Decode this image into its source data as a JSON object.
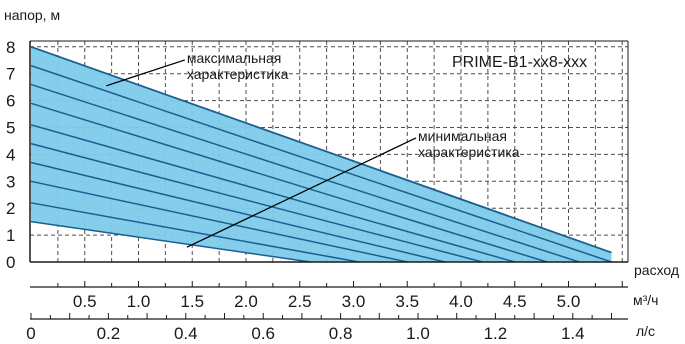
{
  "chart_data": {
    "type": "area",
    "model": "PRIME-B1-xx8-xxx",
    "ylabel": "напор, м",
    "xlabel": "расход",
    "x_unit_primary": "м³/ч",
    "x_unit_secondary": "л/с",
    "ylim": [
      0,
      8
    ],
    "xlim": [
      0,
      5.4
    ],
    "y_ticks": [
      "0",
      "1",
      "2",
      "3",
      "4",
      "5",
      "6",
      "7",
      "8"
    ],
    "x_ticks_primary": [
      "0.5",
      "1.0",
      "1.5",
      "2.0",
      "2.5",
      "3.0",
      "3.5",
      "4.0",
      "4.5",
      "5.0"
    ],
    "x_ticks_secondary": [
      "0",
      "0.2",
      "0.4",
      "0.6",
      "0.8",
      "1.0",
      "1.2",
      "1.4"
    ],
    "grid": true,
    "curves": [
      {
        "x": [
          0,
          5.4
        ],
        "y": [
          8.0,
          0.35
        ]
      },
      {
        "x": [
          0,
          5.4
        ],
        "y": [
          7.3,
          0.0
        ]
      },
      {
        "x": [
          0,
          5.1
        ],
        "y": [
          6.6,
          0.0
        ]
      },
      {
        "x": [
          0,
          4.8
        ],
        "y": [
          5.9,
          0.0
        ]
      },
      {
        "x": [
          0,
          4.5
        ],
        "y": [
          5.1,
          0.0
        ]
      },
      {
        "x": [
          0,
          4.2
        ],
        "y": [
          4.4,
          0.0
        ]
      },
      {
        "x": [
          0,
          3.85
        ],
        "y": [
          3.7,
          0.0
        ]
      },
      {
        "x": [
          0,
          3.5
        ],
        "y": [
          3.0,
          0.0
        ]
      },
      {
        "x": [
          0,
          3.05
        ],
        "y": [
          2.2,
          0.0
        ]
      },
      {
        "x": [
          0,
          2.6
        ],
        "y": [
          1.5,
          0.0
        ]
      }
    ],
    "region_polygon": {
      "x": [
        0,
        5.4,
        5.4,
        2.6,
        0
      ],
      "y": [
        8.0,
        0.35,
        0.0,
        0.0,
        1.5
      ]
    },
    "annotations": [
      {
        "lines": [
          "максимальная",
          "характеристика"
        ],
        "text_at": [
          1.45,
          7.4
        ],
        "points_to": [
          0.7,
          6.55
        ]
      },
      {
        "lines": [
          "минимальная",
          "характеристика"
        ],
        "text_at": [
          3.6,
          4.5
        ],
        "points_to": [
          1.45,
          0.55
        ]
      }
    ],
    "colors": {
      "fill": "#7dcbea",
      "curve": "#1b5f90",
      "grid": "#4f4f4f",
      "axis": "#1a1a1a"
    }
  }
}
